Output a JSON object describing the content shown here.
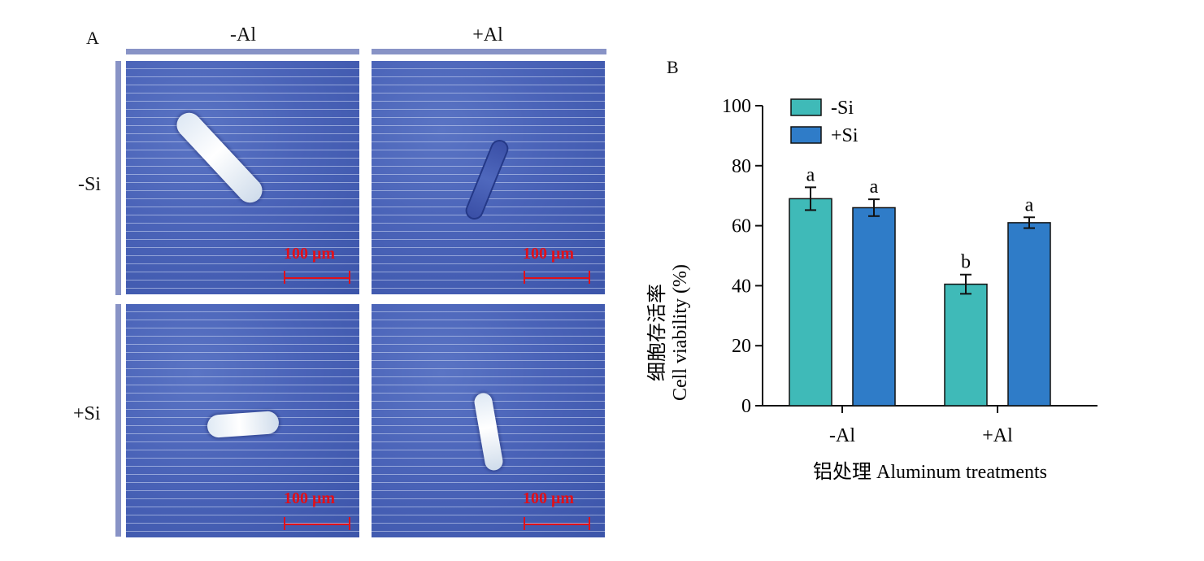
{
  "panel_a": {
    "label": "A",
    "columns": [
      "-Al",
      "+Al"
    ],
    "rows": [
      "-Si",
      "+Si"
    ],
    "scale_bar": "100 μm"
  },
  "panel_b": {
    "label": "B"
  },
  "colors": {
    "minus_si": "#3fbab8",
    "plus_si": "#2f7cc8",
    "scale_bar": "#e0101a",
    "micro_bg": "#4a63b8"
  },
  "chart_data": {
    "type": "bar",
    "categories": [
      "-Al",
      "+Al"
    ],
    "series": [
      {
        "name": "-Si",
        "values": [
          69,
          40.5
        ],
        "errors": [
          3.8,
          3.2
        ],
        "letters": [
          "a",
          "b"
        ]
      },
      {
        "name": "+Si",
        "values": [
          66,
          61
        ],
        "errors": [
          2.8,
          1.8
        ],
        "letters": [
          "a",
          "a"
        ]
      }
    ],
    "ylabel_cn": "细胞存活率",
    "ylabel": "Cell viability (%)",
    "xlabel": "铝处理 Aluminum treatments",
    "ylim": [
      0,
      100
    ],
    "yticks": [
      0,
      20,
      40,
      60,
      80,
      100
    ],
    "legend_position": "top-left",
    "grid": false
  }
}
